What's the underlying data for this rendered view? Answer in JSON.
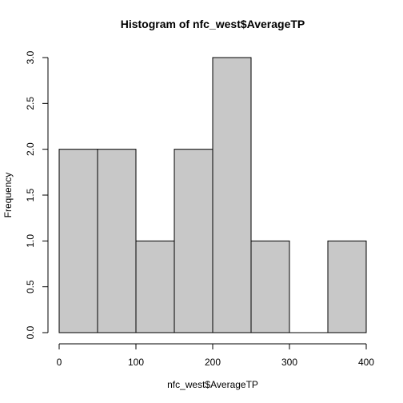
{
  "chart_data": {
    "type": "bar",
    "title": "Histogram of nfc_west$AverageTP",
    "xlabel": "nfc_west$AverageTP",
    "ylabel": "Frequency",
    "bins": [
      {
        "start": 0,
        "end": 50,
        "count": 2
      },
      {
        "start": 50,
        "end": 100,
        "count": 2
      },
      {
        "start": 100,
        "end": 150,
        "count": 1
      },
      {
        "start": 150,
        "end": 200,
        "count": 2
      },
      {
        "start": 200,
        "end": 250,
        "count": 3
      },
      {
        "start": 250,
        "end": 300,
        "count": 1
      },
      {
        "start": 300,
        "end": 350,
        "count": 0
      },
      {
        "start": 350,
        "end": 400,
        "count": 1
      }
    ],
    "xlim": [
      0,
      400
    ],
    "ylim": [
      0,
      3
    ],
    "x_ticks": [
      0,
      100,
      200,
      300,
      400
    ],
    "y_ticks": [
      "0.0",
      "0.5",
      "1.0",
      "1.5",
      "2.0",
      "2.5",
      "3.0"
    ],
    "grid": false,
    "colors": {
      "bar_fill": "#c8c8c8",
      "bar_stroke": "#000000"
    }
  }
}
